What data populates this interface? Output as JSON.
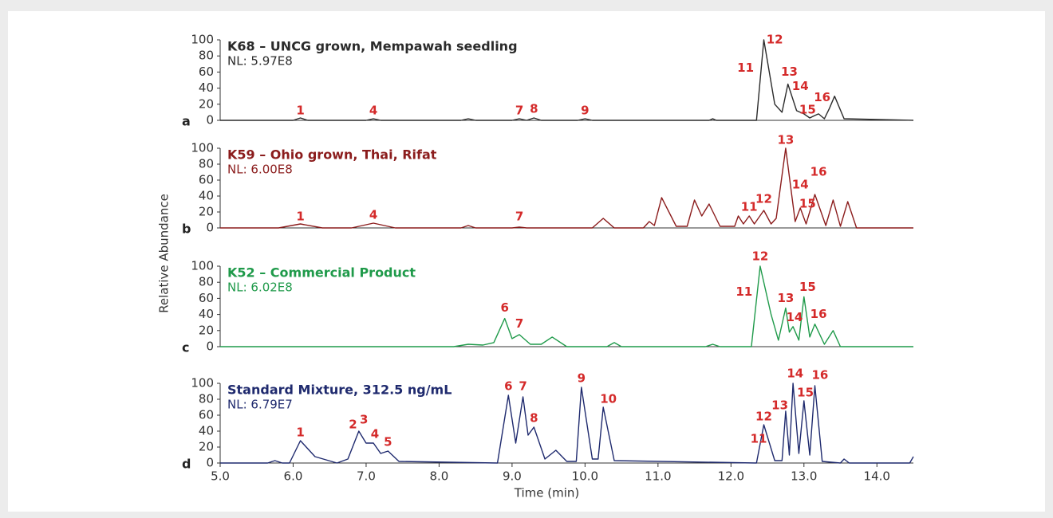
{
  "y_axis_title": "Relative Abundance",
  "chart_data": [
    {
      "type": "line",
      "panel_label": "a",
      "title": "K68 – UNCG grown, Mempawah seedling",
      "subtitle": "NL: 5.97E8",
      "color": "#2b2b2b",
      "xlim": [
        5.0,
        14.5
      ],
      "ylim": [
        0,
        100
      ],
      "yticks": [
        0,
        20,
        40,
        60,
        80,
        100
      ],
      "x": [
        5.0,
        6.0,
        6.1,
        6.2,
        7.0,
        7.1,
        7.2,
        8.3,
        8.4,
        8.5,
        9.0,
        9.1,
        9.2,
        9.3,
        9.4,
        9.9,
        10.0,
        10.1,
        11.7,
        11.75,
        11.8,
        12.35,
        12.45,
        12.6,
        12.7,
        12.78,
        12.9,
        13.0,
        13.08,
        13.15,
        13.2,
        13.28,
        13.35,
        13.42,
        13.55,
        14.5
      ],
      "values": [
        0,
        0,
        3,
        0,
        0,
        2,
        0,
        0,
        2,
        0,
        0,
        2,
        0,
        3,
        0,
        0,
        2,
        0,
        0,
        2,
        0,
        0,
        100,
        20,
        10,
        45,
        12,
        8,
        3,
        6,
        8,
        2,
        15,
        30,
        2,
        0
      ],
      "peak_labels": [
        {
          "text": "1",
          "x": 6.1,
          "y": 12
        },
        {
          "text": "4",
          "x": 7.1,
          "y": 12
        },
        {
          "text": "7",
          "x": 9.1,
          "y": 12
        },
        {
          "text": "8",
          "x": 9.3,
          "y": 14
        },
        {
          "text": "9",
          "x": 10.0,
          "y": 12
        },
        {
          "text": "11",
          "x": 12.2,
          "y": 65
        },
        {
          "text": "12",
          "x": 12.6,
          "y": 100
        },
        {
          "text": "13",
          "x": 12.8,
          "y": 60
        },
        {
          "text": "14",
          "x": 12.95,
          "y": 42
        },
        {
          "text": "15",
          "x": 13.05,
          "y": 13
        },
        {
          "text": "16",
          "x": 13.25,
          "y": 28
        }
      ]
    },
    {
      "type": "line",
      "panel_label": "b",
      "title": "K59 – Ohio grown, Thai, Rifat",
      "subtitle": "NL: 6.00E8",
      "color": "#8b1c1c",
      "xlim": [
        5.0,
        14.5
      ],
      "ylim": [
        0,
        100
      ],
      "yticks": [
        0,
        20,
        40,
        60,
        80,
        100
      ],
      "x": [
        5.0,
        5.8,
        6.1,
        6.4,
        6.8,
        7.1,
        7.4,
        8.3,
        8.4,
        8.5,
        9.0,
        9.1,
        9.2,
        10.1,
        10.25,
        10.4,
        10.8,
        10.88,
        10.95,
        11.05,
        11.25,
        11.4,
        11.5,
        11.6,
        11.7,
        11.85,
        12.05,
        12.1,
        12.17,
        12.25,
        12.32,
        12.45,
        12.55,
        12.62,
        12.75,
        12.88,
        12.95,
        13.03,
        13.15,
        13.3,
        13.4,
        13.5,
        13.6,
        13.72,
        14.5
      ],
      "values": [
        0,
        0,
        5,
        0,
        0,
        6,
        0,
        0,
        3,
        0,
        0,
        1,
        0,
        0,
        12,
        0,
        0,
        8,
        3,
        38,
        2,
        2,
        35,
        15,
        30,
        2,
        2,
        15,
        5,
        15,
        5,
        22,
        5,
        12,
        100,
        8,
        25,
        5,
        42,
        3,
        35,
        2,
        33,
        0,
        0
      ],
      "peak_labels": [
        {
          "text": "1",
          "x": 6.1,
          "y": 14
        },
        {
          "text": "4",
          "x": 7.1,
          "y": 16
        },
        {
          "text": "7",
          "x": 9.1,
          "y": 14
        },
        {
          "text": "11",
          "x": 12.25,
          "y": 26
        },
        {
          "text": "12",
          "x": 12.45,
          "y": 36
        },
        {
          "text": "13",
          "x": 12.75,
          "y": 110
        },
        {
          "text": "14",
          "x": 12.95,
          "y": 54
        },
        {
          "text": "15",
          "x": 13.05,
          "y": 30
        },
        {
          "text": "16",
          "x": 13.2,
          "y": 70
        }
      ]
    },
    {
      "type": "line",
      "panel_label": "c",
      "title": "K52 – Commercial Product",
      "subtitle": "NL: 6.02E8",
      "color": "#1f9a4a",
      "xlim": [
        5.0,
        14.5
      ],
      "ylim": [
        0,
        100
      ],
      "yticks": [
        0,
        20,
        40,
        60,
        80,
        100
      ],
      "x": [
        5.0,
        8.2,
        8.4,
        8.6,
        8.75,
        8.9,
        9.0,
        9.1,
        9.25,
        9.4,
        9.55,
        9.75,
        10.3,
        10.4,
        10.5,
        11.65,
        11.75,
        11.85,
        12.28,
        12.4,
        12.55,
        12.65,
        12.75,
        12.8,
        12.85,
        12.93,
        13.0,
        13.08,
        13.15,
        13.28,
        13.4,
        13.5,
        14.5
      ],
      "values": [
        0,
        0,
        3,
        2,
        5,
        35,
        10,
        15,
        3,
        3,
        12,
        0,
        0,
        5,
        0,
        0,
        3,
        0,
        0,
        100,
        40,
        8,
        48,
        18,
        25,
        8,
        62,
        12,
        28,
        3,
        20,
        0,
        0
      ],
      "peak_labels": [
        {
          "text": "6",
          "x": 8.9,
          "y": 48
        },
        {
          "text": "7",
          "x": 9.1,
          "y": 28
        },
        {
          "text": "11",
          "x": 12.18,
          "y": 68
        },
        {
          "text": "12",
          "x": 12.4,
          "y": 112
        },
        {
          "text": "13",
          "x": 12.75,
          "y": 60
        },
        {
          "text": "14",
          "x": 12.87,
          "y": 36
        },
        {
          "text": "15",
          "x": 13.05,
          "y": 74
        },
        {
          "text": "16",
          "x": 13.2,
          "y": 40
        }
      ]
    },
    {
      "type": "line",
      "panel_label": "d",
      "title": "Standard Mixture, 312.5 ng/mL",
      "subtitle": "NL: 6.79E7",
      "color": "#1f2a6e",
      "xlim": [
        5.0,
        14.5
      ],
      "ylim": [
        0,
        100
      ],
      "yticks": [
        0,
        20,
        40,
        60,
        80,
        100
      ],
      "xticks": [
        {
          "value": 5,
          "label": "5.0"
        },
        {
          "value": 6,
          "label": "6.0"
        },
        {
          "value": 7,
          "label": "7.0"
        },
        {
          "value": 8,
          "label": "8.0"
        },
        {
          "value": 9,
          "label": "9.0"
        },
        {
          "value": 10,
          "label": "10.0"
        },
        {
          "value": 11,
          "label": "11.0"
        },
        {
          "value": 12,
          "label": "12.0"
        },
        {
          "value": 13,
          "label": "13.0"
        },
        {
          "value": 14,
          "label": "14.0"
        }
      ],
      "xlabel": "Time (min)",
      "x": [
        5.0,
        5.65,
        5.75,
        5.85,
        5.95,
        6.1,
        6.3,
        6.6,
        6.75,
        6.9,
        7.0,
        7.1,
        7.2,
        7.3,
        7.45,
        8.8,
        8.95,
        9.05,
        9.15,
        9.22,
        9.3,
        9.45,
        9.6,
        9.75,
        9.88,
        9.95,
        10.1,
        10.18,
        10.25,
        10.4,
        12.35,
        12.45,
        12.6,
        12.7,
        12.75,
        12.8,
        12.85,
        12.93,
        13.0,
        13.08,
        13.15,
        13.25,
        13.5,
        13.55,
        13.62,
        14.45,
        14.5
      ],
      "values": [
        0,
        0,
        3,
        0,
        0,
        28,
        8,
        0,
        5,
        40,
        25,
        25,
        12,
        15,
        2,
        0,
        85,
        25,
        83,
        35,
        45,
        5,
        16,
        2,
        2,
        95,
        5,
        5,
        70,
        3,
        0,
        48,
        3,
        3,
        65,
        10,
        100,
        12,
        78,
        10,
        97,
        2,
        0,
        5,
        0,
        0,
        8
      ],
      "peak_labels": [
        {
          "text": "1",
          "x": 6.1,
          "y": 38
        },
        {
          "text": "2",
          "x": 6.82,
          "y": 48
        },
        {
          "text": "3",
          "x": 6.97,
          "y": 54
        },
        {
          "text": "4",
          "x": 7.12,
          "y": 36
        },
        {
          "text": "5",
          "x": 7.3,
          "y": 26
        },
        {
          "text": "6",
          "x": 8.95,
          "y": 96
        },
        {
          "text": "7",
          "x": 9.15,
          "y": 96
        },
        {
          "text": "8",
          "x": 9.3,
          "y": 56
        },
        {
          "text": "9",
          "x": 9.95,
          "y": 106
        },
        {
          "text": "10",
          "x": 10.32,
          "y": 80
        },
        {
          "text": "11",
          "x": 12.38,
          "y": 30
        },
        {
          "text": "12",
          "x": 12.45,
          "y": 58
        },
        {
          "text": "13",
          "x": 12.67,
          "y": 72
        },
        {
          "text": "14",
          "x": 12.88,
          "y": 112
        },
        {
          "text": "15",
          "x": 13.02,
          "y": 88
        },
        {
          "text": "16",
          "x": 13.22,
          "y": 110
        }
      ]
    }
  ]
}
